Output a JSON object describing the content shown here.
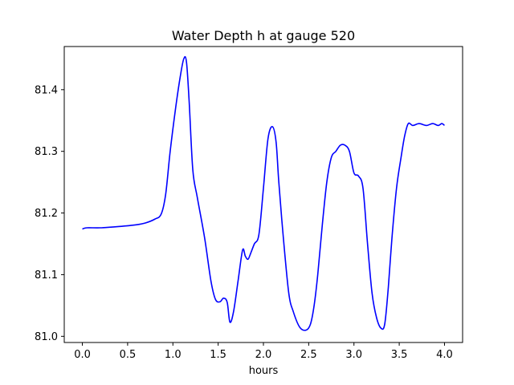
{
  "chart_data": {
    "type": "line",
    "title": "Water Depth h at gauge 520",
    "xlabel": "hours",
    "ylabel": "",
    "xlim": [
      -0.2,
      4.2
    ],
    "ylim": [
      80.99,
      81.47
    ],
    "xticks": [
      0.0,
      0.5,
      1.0,
      1.5,
      2.0,
      2.5,
      3.0,
      3.5,
      4.0
    ],
    "xtick_labels": [
      "0.0",
      "0.5",
      "1.0",
      "1.5",
      "2.0",
      "2.5",
      "3.0",
      "3.5",
      "4.0"
    ],
    "yticks": [
      81.0,
      81.1,
      81.2,
      81.3,
      81.4
    ],
    "ytick_labels": [
      "81.0",
      "81.1",
      "81.2",
      "81.3",
      "81.4"
    ],
    "grid": false,
    "series": [
      {
        "color": "#0000ff",
        "x": [
          0.0,
          0.05,
          0.2,
          0.4,
          0.6,
          0.7,
          0.8,
          0.87,
          0.92,
          0.97,
          1.03,
          1.08,
          1.12,
          1.15,
          1.18,
          1.22,
          1.27,
          1.35,
          1.42,
          1.47,
          1.52,
          1.56,
          1.6,
          1.63,
          1.67,
          1.72,
          1.77,
          1.8,
          1.83,
          1.86,
          1.9,
          1.95,
          2.0,
          2.05,
          2.1,
          2.14,
          2.17,
          2.22,
          2.28,
          2.33,
          2.4,
          2.47,
          2.52,
          2.56,
          2.6,
          2.65,
          2.7,
          2.75,
          2.8,
          2.85,
          2.9,
          2.95,
          3.0,
          3.05,
          3.1,
          3.15,
          3.2,
          3.25,
          3.3,
          3.34,
          3.38,
          3.42,
          3.47,
          3.52,
          3.56,
          3.6,
          3.65,
          3.72,
          3.8,
          3.87,
          3.93,
          3.97,
          4.0
        ],
        "y": [
          81.174,
          81.176,
          81.176,
          81.178,
          81.181,
          81.184,
          81.19,
          81.198,
          81.23,
          81.3,
          81.37,
          81.42,
          81.45,
          81.445,
          81.38,
          81.27,
          81.225,
          81.16,
          81.09,
          81.06,
          81.056,
          81.062,
          81.055,
          81.023,
          81.04,
          81.09,
          81.14,
          81.13,
          81.125,
          81.135,
          81.15,
          81.165,
          81.24,
          81.32,
          81.34,
          81.315,
          81.25,
          81.16,
          81.07,
          81.04,
          81.015,
          81.01,
          81.02,
          81.05,
          81.1,
          81.18,
          81.25,
          81.29,
          81.3,
          81.31,
          81.31,
          81.3,
          81.265,
          81.26,
          81.24,
          81.15,
          81.07,
          81.03,
          81.013,
          81.02,
          81.08,
          81.16,
          81.24,
          81.29,
          81.325,
          81.345,
          81.342,
          81.345,
          81.342,
          81.345,
          81.342,
          81.345,
          81.342
        ]
      }
    ]
  }
}
